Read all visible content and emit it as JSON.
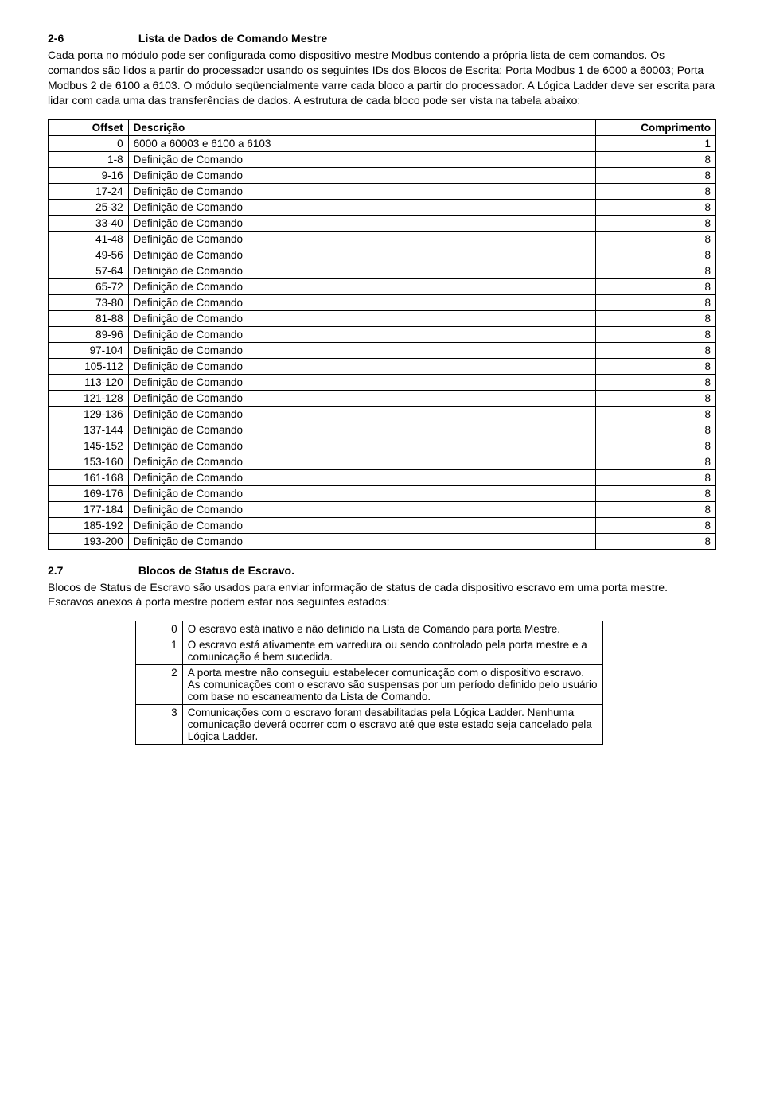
{
  "section1": {
    "number": "2-6",
    "title": "Lista de Dados de Comando Mestre",
    "p1": "Cada porta no módulo pode ser configurada como dispositivo mestre Modbus contendo a própria lista de cem comandos. Os comandos são lidos a partir do processador usando os seguintes IDs dos Blocos de Escrita: Porta Modbus 1 de 6000 a 60003; Porta Modbus 2 de 6100 a 6103. O módulo seqüencialmente varre cada bloco a partir do processador. A Lógica Ladder deve ser escrita para lidar com cada uma das transferências de dados. A estrutura de cada bloco pode ser vista na tabela abaixo:"
  },
  "table1": {
    "headers": {
      "c1": "Offset",
      "c2": "Descrição",
      "c3": "Comprimento"
    },
    "rows": [
      {
        "offset": "0",
        "desc": "6000 a 60003 e 6100 a 6103",
        "len": "1"
      },
      {
        "offset": "1-8",
        "desc": "Definição de Comando",
        "len": "8"
      },
      {
        "offset": "9-16",
        "desc": "Definição de Comando",
        "len": "8"
      },
      {
        "offset": "17-24",
        "desc": "Definição de Comando",
        "len": "8"
      },
      {
        "offset": "25-32",
        "desc": "Definição de Comando",
        "len": "8"
      },
      {
        "offset": "33-40",
        "desc": "Definição de Comando",
        "len": "8"
      },
      {
        "offset": "41-48",
        "desc": "Definição de Comando",
        "len": "8"
      },
      {
        "offset": "49-56",
        "desc": "Definição de Comando",
        "len": "8"
      },
      {
        "offset": "57-64",
        "desc": "Definição de Comando",
        "len": "8"
      },
      {
        "offset": "65-72",
        "desc": "Definição de Comando",
        "len": "8"
      },
      {
        "offset": "73-80",
        "desc": "Definição de Comando",
        "len": "8"
      },
      {
        "offset": "81-88",
        "desc": "Definição de Comando",
        "len": "8"
      },
      {
        "offset": "89-96",
        "desc": "Definição de Comando",
        "len": "8"
      },
      {
        "offset": "97-104",
        "desc": "Definição de Comando",
        "len": "8"
      },
      {
        "offset": "105-112",
        "desc": "Definição de Comando",
        "len": "8"
      },
      {
        "offset": "113-120",
        "desc": "Definição de Comando",
        "len": "8"
      },
      {
        "offset": "121-128",
        "desc": "Definição de Comando",
        "len": "8"
      },
      {
        "offset": "129-136",
        "desc": "Definição de Comando",
        "len": "8"
      },
      {
        "offset": "137-144",
        "desc": "Definição de Comando",
        "len": "8"
      },
      {
        "offset": "145-152",
        "desc": "Definição de Comando",
        "len": "8"
      },
      {
        "offset": "153-160",
        "desc": "Definição de Comando",
        "len": "8"
      },
      {
        "offset": "161-168",
        "desc": "Definição de Comando",
        "len": "8"
      },
      {
        "offset": "169-176",
        "desc": "Definição de Comando",
        "len": "8"
      },
      {
        "offset": "177-184",
        "desc": "Definição de Comando",
        "len": "8"
      },
      {
        "offset": "185-192",
        "desc": "Definição de Comando",
        "len": "8"
      },
      {
        "offset": "193-200",
        "desc": "Definição de Comando",
        "len": "8"
      }
    ]
  },
  "section2": {
    "number": "2.7",
    "title": "Blocos de Status de Escravo.",
    "p1": "Blocos de Status de Escravo são usados para enviar informação de status de cada dispositivo escravo em uma porta mestre. Escravos anexos à porta mestre podem estar nos seguintes estados:"
  },
  "table2": {
    "rows": [
      {
        "code": "0",
        "desc": "O escravo está inativo e não definido na Lista de Comando para porta Mestre."
      },
      {
        "code": "1",
        "desc": "O escravo está ativamente em varredura ou sendo controlado pela porta mestre e a comunicação é bem sucedida."
      },
      {
        "code": "2",
        "desc": "A porta mestre não conseguiu estabelecer comunicação com o dispositivo escravo. As comunicações com o escravo são suspensas por um período definido pelo usuário com base no escaneamento da Lista de Comando."
      },
      {
        "code": "3",
        "desc": "Comunicações com o escravo foram desabilitadas pela Lógica Ladder. Nenhuma comunicação deverá ocorrer com o escravo até que este estado seja cancelado pela Lógica Ladder."
      }
    ]
  }
}
